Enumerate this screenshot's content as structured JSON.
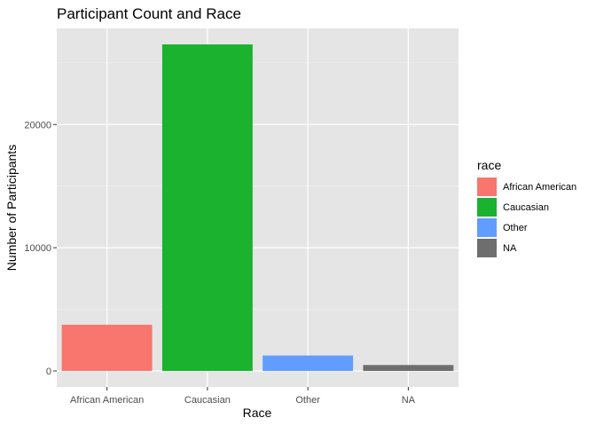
{
  "chart_data": {
    "type": "bar",
    "title": "Participant Count and Race",
    "xlabel": "Race",
    "ylabel": "Number of Participants",
    "categories": [
      "African American",
      "Caucasian",
      "Other",
      "NA"
    ],
    "values": [
      3750,
      26500,
      1250,
      480
    ],
    "colors": [
      "#F8766D",
      "#1AB22E",
      "#619CFF",
      "#6E6E6E"
    ],
    "yticks": [
      0,
      10000,
      20000
    ],
    "ylim": [
      -1300,
      27800
    ],
    "grid": true,
    "legend": {
      "title": "race",
      "position": "right",
      "entries": [
        "African American",
        "Caucasian",
        "Other",
        "NA"
      ]
    }
  }
}
